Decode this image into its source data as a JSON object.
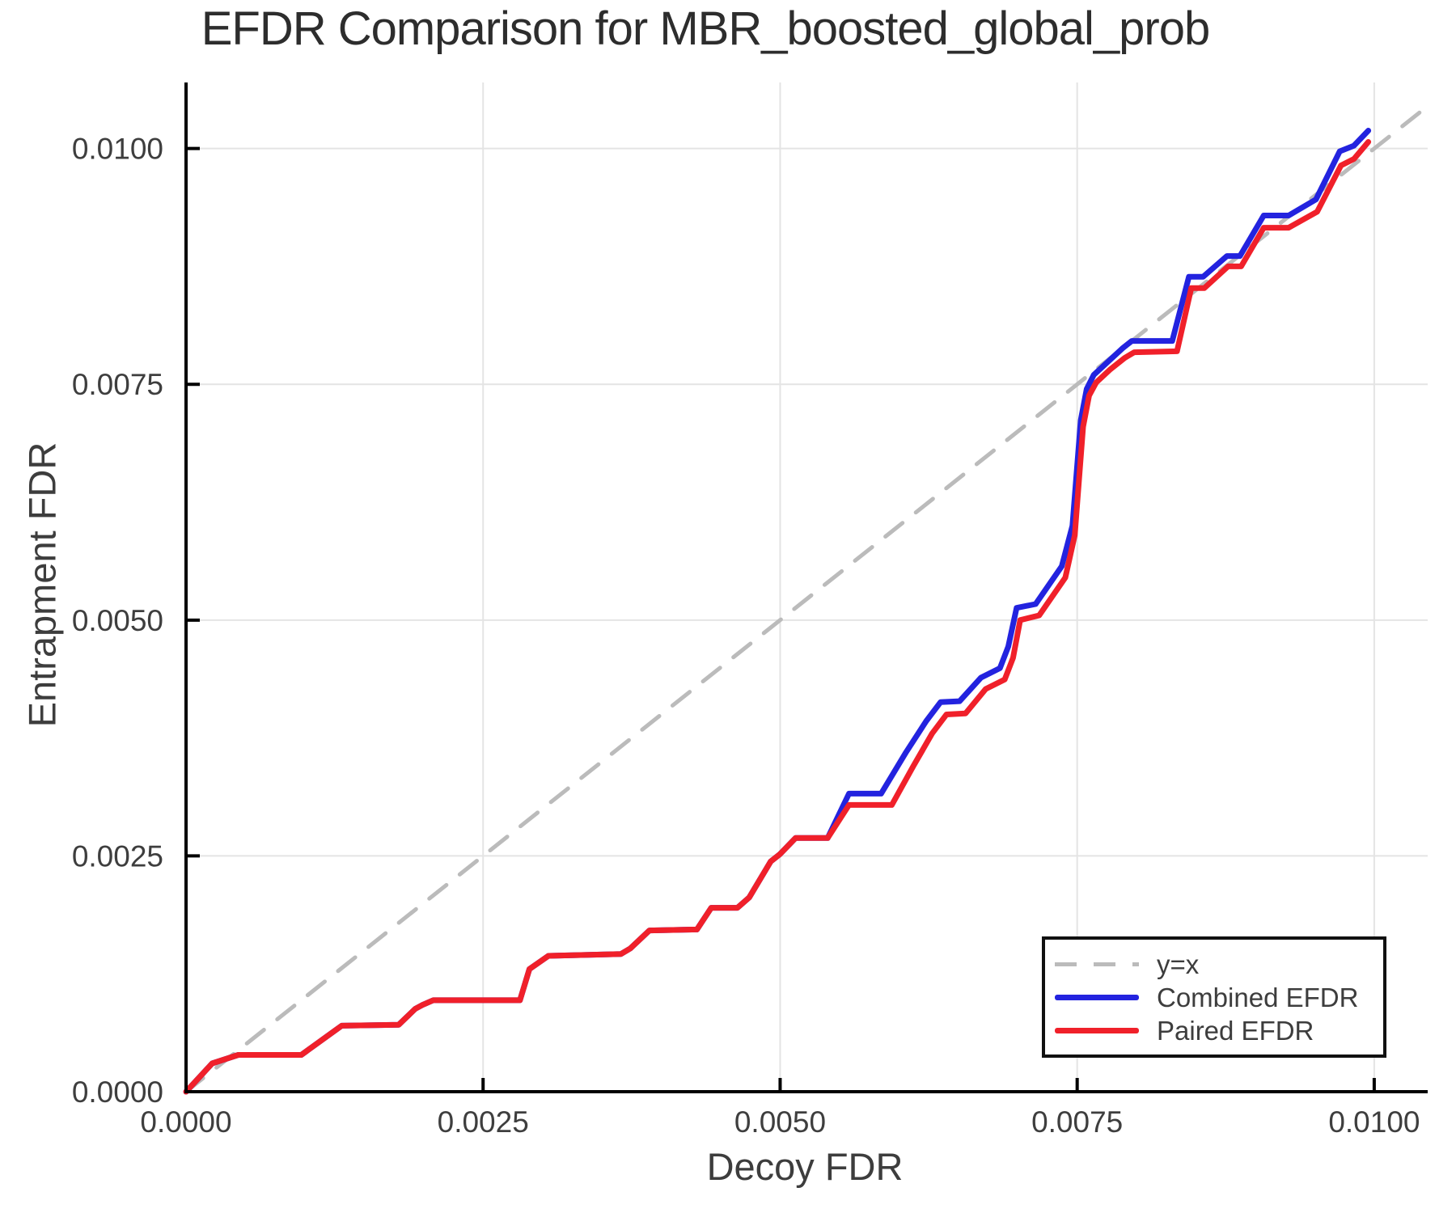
{
  "title": "EFDR Comparison for MBR_boosted_global_prob",
  "colors": {
    "combined": "#2323DF",
    "paired": "#F0202A",
    "identity": "#BBBBBB",
    "grid": "#E4E4E4",
    "axis": "#000000",
    "text": "#3E3E3E"
  },
  "chart_data": {
    "type": "line",
    "title": "EFDR Comparison for MBR_boosted_global_prob",
    "xlabel": "Decoy FDR",
    "ylabel": "Entrapment FDR",
    "xlim": [
      0,
      0.01045
    ],
    "ylim": [
      0,
      0.0107
    ],
    "grid": true,
    "legend_position": "bottom-right",
    "xticks": {
      "values": [
        0.0,
        0.0025,
        0.005,
        0.0075,
        0.01
      ],
      "labels": [
        "0.0000",
        "0.0025",
        "0.0050",
        "0.0075",
        "0.0100"
      ]
    },
    "yticks": {
      "values": [
        0.0,
        0.0025,
        0.005,
        0.0075,
        0.01
      ],
      "labels": [
        "0.0000",
        "0.0025",
        "0.0050",
        "0.0075",
        "0.0100"
      ]
    },
    "series": [
      {
        "name": "y=x",
        "style": "dashed",
        "color": "#BBBBBB",
        "points": [
          [
            0,
            0
          ],
          [
            0.01045,
            0.01045
          ]
        ]
      },
      {
        "name": "Combined EFDR",
        "style": "solid",
        "color": "#2323DF",
        "points": [
          [
            0.0,
            0.0
          ],
          [
            0.00022,
            0.0003
          ],
          [
            0.00044,
            0.00039
          ],
          [
            0.00097,
            0.00039
          ],
          [
            0.00131,
            0.0007
          ],
          [
            0.00179,
            0.00071
          ],
          [
            0.00193,
            0.00088
          ],
          [
            0.00199,
            0.00092
          ],
          [
            0.00208,
            0.00097
          ],
          [
            0.00281,
            0.00097
          ],
          [
            0.00289,
            0.0013
          ],
          [
            0.00305,
            0.00144
          ],
          [
            0.00366,
            0.00146
          ],
          [
            0.00374,
            0.00152
          ],
          [
            0.0039,
            0.00171
          ],
          [
            0.0043,
            0.00172
          ],
          [
            0.00442,
            0.00195
          ],
          [
            0.00464,
            0.00195
          ],
          [
            0.00474,
            0.00206
          ],
          [
            0.00492,
            0.00244
          ],
          [
            0.005,
            0.00252
          ],
          [
            0.00513,
            0.00269
          ],
          [
            0.0054,
            0.00269
          ],
          [
            0.00558,
            0.00316
          ],
          [
            0.00585,
            0.00316
          ],
          [
            0.00606,
            0.0036
          ],
          [
            0.00623,
            0.00393
          ],
          [
            0.00635,
            0.00413
          ],
          [
            0.00651,
            0.00414
          ],
          [
            0.00669,
            0.00439
          ],
          [
            0.00685,
            0.00449
          ],
          [
            0.00692,
            0.00472
          ],
          [
            0.00699,
            0.00513
          ],
          [
            0.00715,
            0.00517
          ],
          [
            0.00737,
            0.00557
          ],
          [
            0.00746,
            0.006
          ],
          [
            0.00753,
            0.00712
          ],
          [
            0.00758,
            0.00745
          ],
          [
            0.00764,
            0.0076
          ],
          [
            0.00776,
            0.00774
          ],
          [
            0.00788,
            0.00788
          ],
          [
            0.00796,
            0.00796
          ],
          [
            0.0083,
            0.00796
          ],
          [
            0.00844,
            0.00864
          ],
          [
            0.00856,
            0.00864
          ],
          [
            0.00876,
            0.00886
          ],
          [
            0.00887,
            0.00886
          ],
          [
            0.00907,
            0.00929
          ],
          [
            0.00928,
            0.00929
          ],
          [
            0.00951,
            0.00946
          ],
          [
            0.00971,
            0.00997
          ],
          [
            0.00983,
            0.01003
          ],
          [
            0.00995,
            0.01019
          ]
        ]
      },
      {
        "name": "Paired EFDR",
        "style": "solid",
        "color": "#F0202A",
        "points": [
          [
            0.0,
            0.0
          ],
          [
            0.00022,
            0.0003
          ],
          [
            0.00044,
            0.00039
          ],
          [
            0.00097,
            0.00039
          ],
          [
            0.00131,
            0.0007
          ],
          [
            0.00179,
            0.00071
          ],
          [
            0.00193,
            0.00088
          ],
          [
            0.00199,
            0.00092
          ],
          [
            0.00208,
            0.00097
          ],
          [
            0.00281,
            0.00097
          ],
          [
            0.00289,
            0.0013
          ],
          [
            0.00305,
            0.00144
          ],
          [
            0.00366,
            0.00146
          ],
          [
            0.00374,
            0.00152
          ],
          [
            0.0039,
            0.00171
          ],
          [
            0.0043,
            0.00172
          ],
          [
            0.00442,
            0.00195
          ],
          [
            0.00464,
            0.00195
          ],
          [
            0.00474,
            0.00206
          ],
          [
            0.00492,
            0.00244
          ],
          [
            0.005,
            0.00252
          ],
          [
            0.00513,
            0.00269
          ],
          [
            0.0054,
            0.00269
          ],
          [
            0.00558,
            0.00304
          ],
          [
            0.00594,
            0.00304
          ],
          [
            0.00612,
            0.00345
          ],
          [
            0.00628,
            0.0038
          ],
          [
            0.0064,
            0.004
          ],
          [
            0.00656,
            0.00401
          ],
          [
            0.00673,
            0.00427
          ],
          [
            0.00689,
            0.00437
          ],
          [
            0.00696,
            0.0046
          ],
          [
            0.00702,
            0.005
          ],
          [
            0.00718,
            0.00505
          ],
          [
            0.0074,
            0.00545
          ],
          [
            0.00748,
            0.0059
          ],
          [
            0.00755,
            0.00705
          ],
          [
            0.0076,
            0.00738
          ],
          [
            0.00766,
            0.00752
          ],
          [
            0.00778,
            0.00766
          ],
          [
            0.0079,
            0.00778
          ],
          [
            0.00798,
            0.00784
          ],
          [
            0.00834,
            0.00785
          ],
          [
            0.00846,
            0.00852
          ],
          [
            0.00857,
            0.00852
          ],
          [
            0.00877,
            0.00875
          ],
          [
            0.00888,
            0.00875
          ],
          [
            0.00907,
            0.00916
          ],
          [
            0.00928,
            0.00916
          ],
          [
            0.00952,
            0.00933
          ],
          [
            0.00972,
            0.00982
          ],
          [
            0.00983,
            0.00989
          ],
          [
            0.00995,
            0.01007
          ]
        ]
      }
    ]
  }
}
